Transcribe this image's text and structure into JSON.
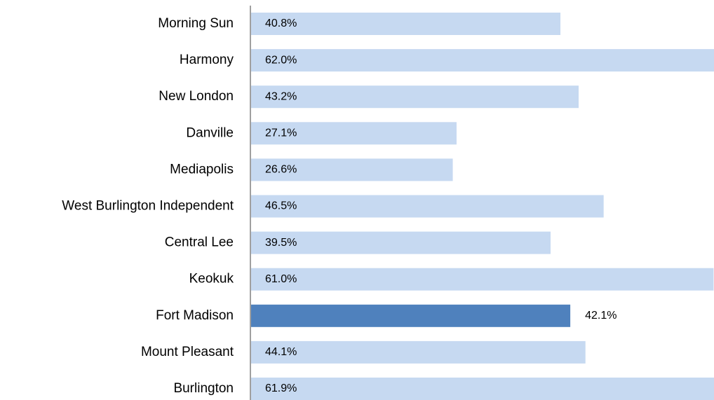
{
  "chart_data": {
    "type": "bar",
    "orientation": "horizontal",
    "categories": [
      "Morning Sun",
      "Harmony",
      "New London",
      "Danville",
      "Mediapolis",
      "West Burlington Independent",
      "Central Lee",
      "Keokuk",
      "Fort Madison",
      "Mount Pleasant",
      "Burlington"
    ],
    "values": [
      40.8,
      62.0,
      43.2,
      27.1,
      26.6,
      46.5,
      39.5,
      61.0,
      42.1,
      44.1,
      61.9
    ],
    "value_labels": [
      "40.8%",
      "62.0%",
      "43.2%",
      "27.1%",
      "26.6%",
      "46.5%",
      "39.5%",
      "61.0%",
      "42.1%",
      "44.1%",
      "61.9%"
    ],
    "colors": [
      "#c6d9f1",
      "#c6d9f1",
      "#c6d9f1",
      "#c6d9f1",
      "#c6d9f1",
      "#c6d9f1",
      "#c6d9f1",
      "#c6d9f1",
      "#4f81bd",
      "#c6d9f1",
      "#c6d9f1"
    ]
  }
}
